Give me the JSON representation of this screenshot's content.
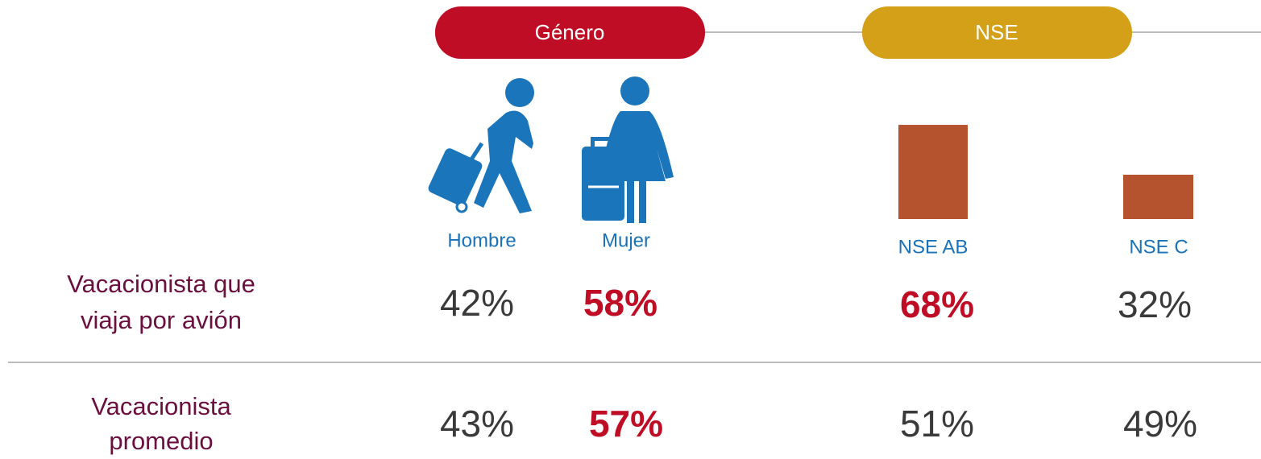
{
  "header": {
    "groups": [
      "Género",
      "NSE"
    ]
  },
  "columns": [
    "Hombre",
    "Mujer",
    "NSE AB",
    "NSE C"
  ],
  "rows": [
    {
      "label": "Vacacionista que viaja por avión",
      "label_lines": [
        "Vacacionista que",
        "viaja por avión"
      ],
      "values": [
        {
          "value": 42,
          "label": "42%"
        },
        {
          "value": 58,
          "label": "58%"
        },
        {
          "value": 68,
          "label": "68%"
        },
        {
          "value": 32,
          "label": "32%"
        }
      ]
    },
    {
      "label": "Vacacionista promedio",
      "label_lines": [
        "Vacacionista",
        "promedio"
      ],
      "values": [
        {
          "value": 43,
          "label": "43%"
        },
        {
          "value": 57,
          "label": "57%"
        },
        {
          "value": 51,
          "label": "51%"
        },
        {
          "value": 49,
          "label": "49%"
        }
      ]
    }
  ],
  "bar_color": "#b5532f"
}
